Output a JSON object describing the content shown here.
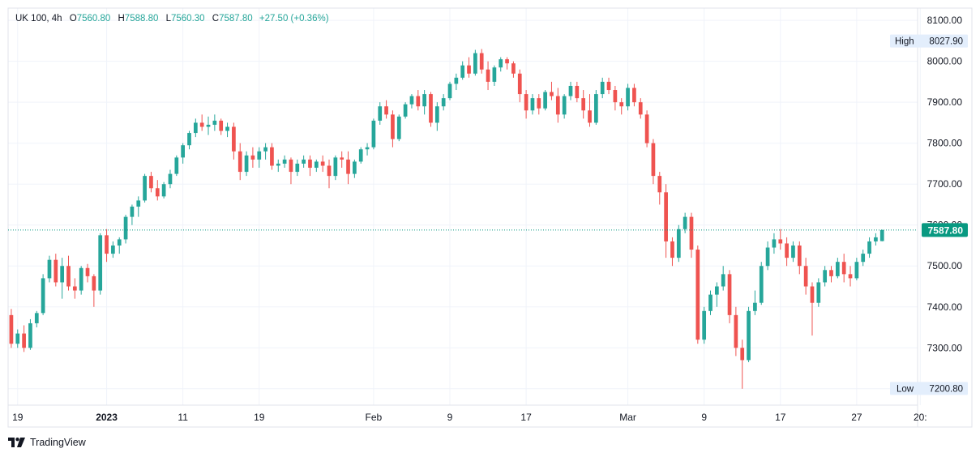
{
  "legend": {
    "symbol": "UK 100, 4h",
    "open_key": "O",
    "open": "7560.80",
    "high_key": "H",
    "high": "7588.80",
    "low_key": "L",
    "low": "7560.30",
    "close_key": "C",
    "close": "7587.80",
    "change": "+27.50 (+0.36%)"
  },
  "branding": {
    "name": "TradingView"
  },
  "colors": {
    "up": "#26a69a",
    "down": "#ef5350",
    "last_price_bg": "#089981",
    "marker_bg": "#e3eefc"
  },
  "chart_data": {
    "type": "candlestick",
    "instrument": "UK 100",
    "interval": "4h",
    "ylim": [
      7160,
      8130
    ],
    "y_ticks": [
      8100,
      8000,
      7900,
      7800,
      7700,
      7600,
      7500,
      7400,
      7300,
      7200
    ],
    "y_tick_labels": [
      "8100.00",
      "8000.00",
      "7900.00",
      "7800.00",
      "7700.00",
      "7600.00",
      "7500.00",
      "7400.00",
      "7300.00",
      "7200.00"
    ],
    "x_tick_labels": [
      {
        "label": "19",
        "index": 1
      },
      {
        "label": "2023",
        "index": 15,
        "bold": true
      },
      {
        "label": "11",
        "index": 27
      },
      {
        "label": "19",
        "index": 39
      },
      {
        "label": "Feb",
        "index": 57
      },
      {
        "label": "9",
        "index": 69
      },
      {
        "label": "17",
        "index": 81
      },
      {
        "label": "Mar",
        "index": 97
      },
      {
        "label": "9",
        "index": 109
      },
      {
        "label": "17",
        "index": 121
      },
      {
        "label": "27",
        "index": 133
      },
      {
        "label": "20:",
        "index": 143
      }
    ],
    "high_marker": {
      "label": "High",
      "value": "8027.90"
    },
    "low_marker": {
      "label": "Low",
      "value": "7200.80"
    },
    "last_price": {
      "value": 7587.8,
      "label": "7587.80"
    },
    "candles": [
      [
        7380,
        7395,
        7300,
        7310
      ],
      [
        7310,
        7345,
        7300,
        7335
      ],
      [
        7335,
        7355,
        7290,
        7300
      ],
      [
        7300,
        7370,
        7295,
        7360
      ],
      [
        7360,
        7390,
        7350,
        7385
      ],
      [
        7385,
        7480,
        7380,
        7470
      ],
      [
        7470,
        7525,
        7460,
        7515
      ],
      [
        7515,
        7530,
        7450,
        7460
      ],
      [
        7460,
        7520,
        7420,
        7500
      ],
      [
        7500,
        7525,
        7440,
        7450
      ],
      [
        7450,
        7470,
        7420,
        7440
      ],
      [
        7440,
        7500,
        7430,
        7495
      ],
      [
        7495,
        7505,
        7460,
        7475
      ],
      [
        7475,
        7480,
        7400,
        7440
      ],
      [
        7440,
        7580,
        7430,
        7575
      ],
      [
        7575,
        7590,
        7510,
        7530
      ],
      [
        7530,
        7560,
        7520,
        7550
      ],
      [
        7550,
        7570,
        7530,
        7565
      ],
      [
        7565,
        7625,
        7555,
        7620
      ],
      [
        7620,
        7650,
        7600,
        7645
      ],
      [
        7645,
        7670,
        7620,
        7660
      ],
      [
        7660,
        7725,
        7655,
        7720
      ],
      [
        7720,
        7730,
        7680,
        7690
      ],
      [
        7690,
        7710,
        7660,
        7670
      ],
      [
        7670,
        7705,
        7665,
        7700
      ],
      [
        7700,
        7735,
        7690,
        7725
      ],
      [
        7725,
        7770,
        7720,
        7765
      ],
      [
        7765,
        7800,
        7750,
        7795
      ],
      [
        7795,
        7830,
        7785,
        7825
      ],
      [
        7825,
        7860,
        7815,
        7850
      ],
      [
        7850,
        7870,
        7830,
        7840
      ],
      [
        7840,
        7865,
        7820,
        7845
      ],
      [
        7845,
        7870,
        7830,
        7855
      ],
      [
        7855,
        7860,
        7820,
        7830
      ],
      [
        7830,
        7850,
        7815,
        7840
      ],
      [
        7840,
        7850,
        7760,
        7780
      ],
      [
        7780,
        7800,
        7710,
        7730
      ],
      [
        7730,
        7780,
        7720,
        7770
      ],
      [
        7770,
        7790,
        7740,
        7760
      ],
      [
        7760,
        7790,
        7740,
        7780
      ],
      [
        7780,
        7800,
        7760,
        7790
      ],
      [
        7790,
        7800,
        7735,
        7745
      ],
      [
        7745,
        7760,
        7730,
        7750
      ],
      [
        7750,
        7770,
        7740,
        7760
      ],
      [
        7760,
        7765,
        7700,
        7730
      ],
      [
        7730,
        7760,
        7720,
        7750
      ],
      [
        7750,
        7770,
        7740,
        7760
      ],
      [
        7760,
        7770,
        7720,
        7740
      ],
      [
        7740,
        7760,
        7730,
        7755
      ],
      [
        7755,
        7770,
        7730,
        7745
      ],
      [
        7745,
        7760,
        7690,
        7720
      ],
      [
        7720,
        7770,
        7710,
        7765
      ],
      [
        7765,
        7780,
        7740,
        7760
      ],
      [
        7760,
        7780,
        7700,
        7725
      ],
      [
        7725,
        7760,
        7715,
        7755
      ],
      [
        7755,
        7790,
        7750,
        7785
      ],
      [
        7785,
        7800,
        7770,
        7790
      ],
      [
        7790,
        7860,
        7785,
        7855
      ],
      [
        7855,
        7900,
        7845,
        7890
      ],
      [
        7890,
        7905,
        7860,
        7870
      ],
      [
        7870,
        7880,
        7790,
        7810
      ],
      [
        7810,
        7870,
        7805,
        7865
      ],
      [
        7865,
        7900,
        7860,
        7895
      ],
      [
        7895,
        7920,
        7885,
        7915
      ],
      [
        7915,
        7930,
        7880,
        7890
      ],
      [
        7890,
        7930,
        7870,
        7920
      ],
      [
        7920,
        7925,
        7840,
        7850
      ],
      [
        7850,
        7900,
        7830,
        7890
      ],
      [
        7890,
        7920,
        7880,
        7910
      ],
      [
        7910,
        7950,
        7905,
        7945
      ],
      [
        7945,
        7970,
        7930,
        7960
      ],
      [
        7960,
        8000,
        7955,
        7990
      ],
      [
        7990,
        8010,
        7960,
        7970
      ],
      [
        7970,
        8028,
        7965,
        8020
      ],
      [
        8020,
        8030,
        7970,
        7980
      ],
      [
        7980,
        8000,
        7930,
        7950
      ],
      [
        7950,
        7990,
        7940,
        7985
      ],
      [
        7985,
        8010,
        7975,
        8005
      ],
      [
        8005,
        8010,
        7980,
        7995
      ],
      [
        7995,
        8000,
        7960,
        7970
      ],
      [
        7970,
        7980,
        7900,
        7920
      ],
      [
        7920,
        7930,
        7860,
        7880
      ],
      [
        7880,
        7920,
        7870,
        7910
      ],
      [
        7910,
        7920,
        7870,
        7885
      ],
      [
        7885,
        7930,
        7880,
        7925
      ],
      [
        7925,
        7950,
        7905,
        7915
      ],
      [
        7915,
        7935,
        7850,
        7870
      ],
      [
        7870,
        7920,
        7860,
        7915
      ],
      [
        7915,
        7950,
        7905,
        7940
      ],
      [
        7940,
        7950,
        7900,
        7910
      ],
      [
        7910,
        7930,
        7860,
        7880
      ],
      [
        7880,
        7920,
        7840,
        7850
      ],
      [
        7850,
        7930,
        7845,
        7920
      ],
      [
        7920,
        7960,
        7910,
        7950
      ],
      [
        7950,
        7960,
        7920,
        7930
      ],
      [
        7930,
        7940,
        7880,
        7900
      ],
      [
        7900,
        7910,
        7870,
        7890
      ],
      [
        7890,
        7945,
        7880,
        7935
      ],
      [
        7935,
        7945,
        7890,
        7900
      ],
      [
        7900,
        7910,
        7860,
        7870
      ],
      [
        7870,
        7880,
        7790,
        7800
      ],
      [
        7800,
        7810,
        7700,
        7720
      ],
      [
        7720,
        7730,
        7650,
        7680
      ],
      [
        7680,
        7700,
        7520,
        7560
      ],
      [
        7560,
        7570,
        7500,
        7520
      ],
      [
        7520,
        7600,
        7510,
        7590
      ],
      [
        7590,
        7630,
        7580,
        7620
      ],
      [
        7620,
        7630,
        7520,
        7540
      ],
      [
        7540,
        7550,
        7310,
        7320
      ],
      [
        7320,
        7400,
        7310,
        7390
      ],
      [
        7390,
        7440,
        7380,
        7430
      ],
      [
        7430,
        7460,
        7400,
        7450
      ],
      [
        7450,
        7500,
        7440,
        7480
      ],
      [
        7480,
        7490,
        7360,
        7380
      ],
      [
        7380,
        7400,
        7280,
        7300
      ],
      [
        7300,
        7320,
        7200,
        7270
      ],
      [
        7270,
        7400,
        7265,
        7390
      ],
      [
        7390,
        7440,
        7380,
        7410
      ],
      [
        7410,
        7510,
        7405,
        7500
      ],
      [
        7500,
        7560,
        7490,
        7545
      ],
      [
        7545,
        7580,
        7530,
        7565
      ],
      [
        7565,
        7590,
        7540,
        7555
      ],
      [
        7555,
        7570,
        7500,
        7520
      ],
      [
        7520,
        7560,
        7510,
        7550
      ],
      [
        7550,
        7560,
        7480,
        7500
      ],
      [
        7500,
        7520,
        7430,
        7450
      ],
      [
        7450,
        7460,
        7330,
        7410
      ],
      [
        7410,
        7470,
        7400,
        7460
      ],
      [
        7460,
        7500,
        7450,
        7490
      ],
      [
        7490,
        7500,
        7460,
        7475
      ],
      [
        7475,
        7520,
        7470,
        7510
      ],
      [
        7510,
        7530,
        7460,
        7480
      ],
      [
        7480,
        7500,
        7450,
        7470
      ],
      [
        7470,
        7520,
        7465,
        7510
      ],
      [
        7510,
        7540,
        7500,
        7530
      ],
      [
        7530,
        7570,
        7520,
        7560
      ],
      [
        7560,
        7580,
        7550,
        7570
      ],
      [
        7560.8,
        7588.8,
        7560.3,
        7587.8
      ]
    ]
  }
}
